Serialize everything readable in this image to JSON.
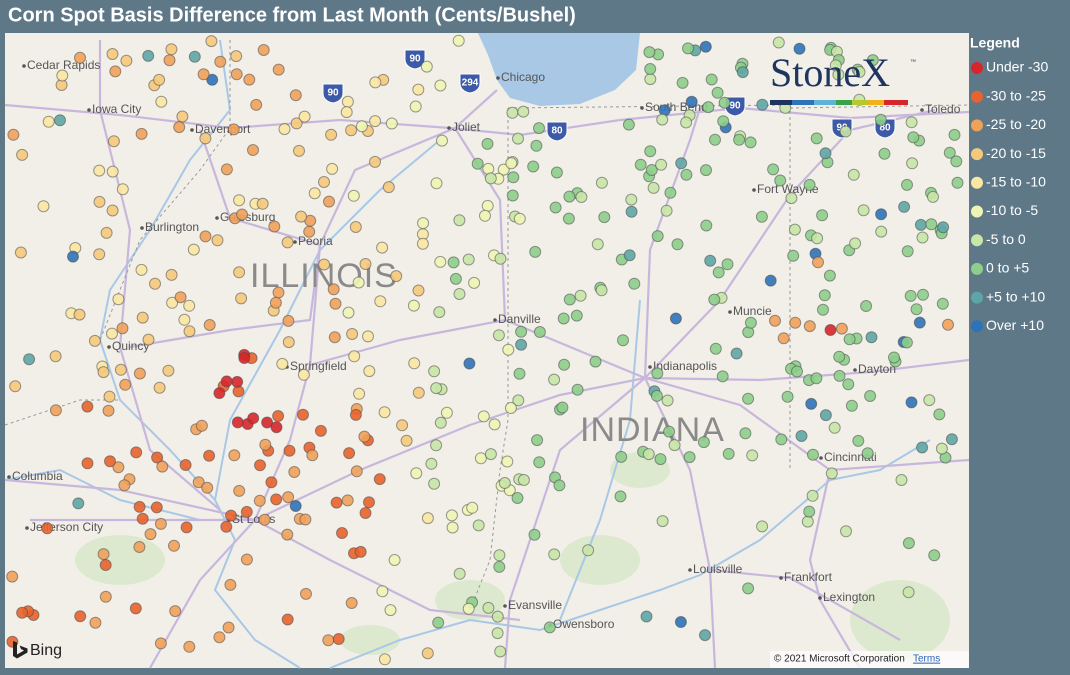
{
  "header": {
    "title": "Corn Spot Basis Difference from Last Month (Cents/Bushel)"
  },
  "legend": {
    "title": "Legend",
    "items": [
      {
        "label": "Under -30",
        "color": "#d7262b"
      },
      {
        "label": "-30 to -25",
        "color": "#e8632d"
      },
      {
        "label": "-25 to -20",
        "color": "#efa15a"
      },
      {
        "label": "-20 to -15",
        "color": "#f5c97c"
      },
      {
        "label": "-15 to -10",
        "color": "#f9e7a2"
      },
      {
        "label": "-10 to -5",
        "color": "#eef5b4"
      },
      {
        "label": "-5 to 0",
        "color": "#c8e6a6"
      },
      {
        "label": "0 to +5",
        "color": "#8dce8b"
      },
      {
        "label": "+5 to +10",
        "color": "#5ea6a6"
      },
      {
        "label": "Over +10",
        "color": "#2e72b8"
      }
    ]
  },
  "logo": {
    "name": "StoneX",
    "mark": "™"
  },
  "map": {
    "states": [
      "ILLINOIS",
      "INDIANA"
    ],
    "cities": [
      "Cedar Rapids",
      "Iowa City",
      "Davenport",
      "Galesburg",
      "Burlington",
      "Peoria",
      "Quincy",
      "Springfield",
      "St Louis",
      "Columbia",
      "Jefferson City",
      "Joliet",
      "Chicago",
      "South Bend",
      "Toledo",
      "Fort Wayne",
      "Muncie",
      "Dayton",
      "Indianapolis",
      "Danville",
      "Cincinnati",
      "Louisville",
      "Frankfort",
      "Lexington",
      "Evansville",
      "Owensboro"
    ],
    "highways": [
      "90",
      "294",
      "90",
      "80",
      "90",
      "90",
      "80"
    ]
  },
  "attribution": {
    "provider": "Bing",
    "copyright": "© 2021 Microsoft Corporation",
    "terms": "Terms"
  }
}
